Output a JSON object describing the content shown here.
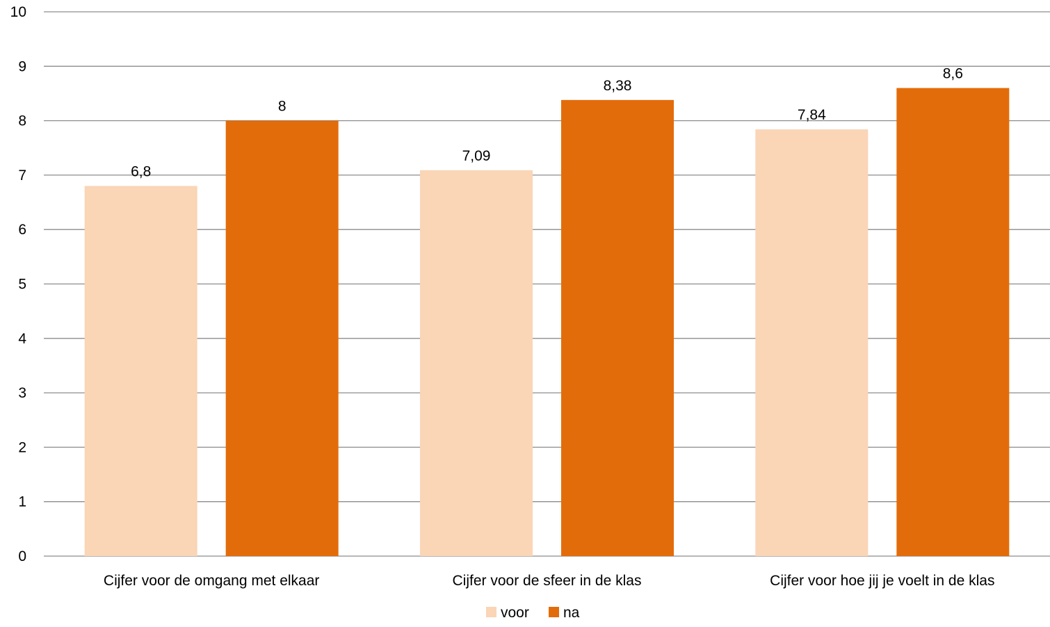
{
  "chart_data": {
    "type": "bar",
    "categories": [
      "Cijfer voor de omgang met elkaar",
      "Cijfer voor de sfeer in de klas",
      "Cijfer voor hoe jij je voelt in de klas"
    ],
    "series": [
      {
        "name": "voor",
        "values": [
          6.8,
          7.09,
          7.84
        ],
        "labels": [
          "6,8",
          "7,09",
          "7,84"
        ],
        "color": "#FAD5B6"
      },
      {
        "name": "na",
        "values": [
          8,
          8.38,
          8.6
        ],
        "labels": [
          "8",
          "8,38",
          "8,6"
        ],
        "color": "#E36C0A"
      }
    ],
    "ylim": [
      0,
      10
    ],
    "yticks": [
      0,
      1,
      2,
      3,
      4,
      5,
      6,
      7,
      8,
      9,
      10
    ],
    "grid": true,
    "legend": "bottom"
  }
}
